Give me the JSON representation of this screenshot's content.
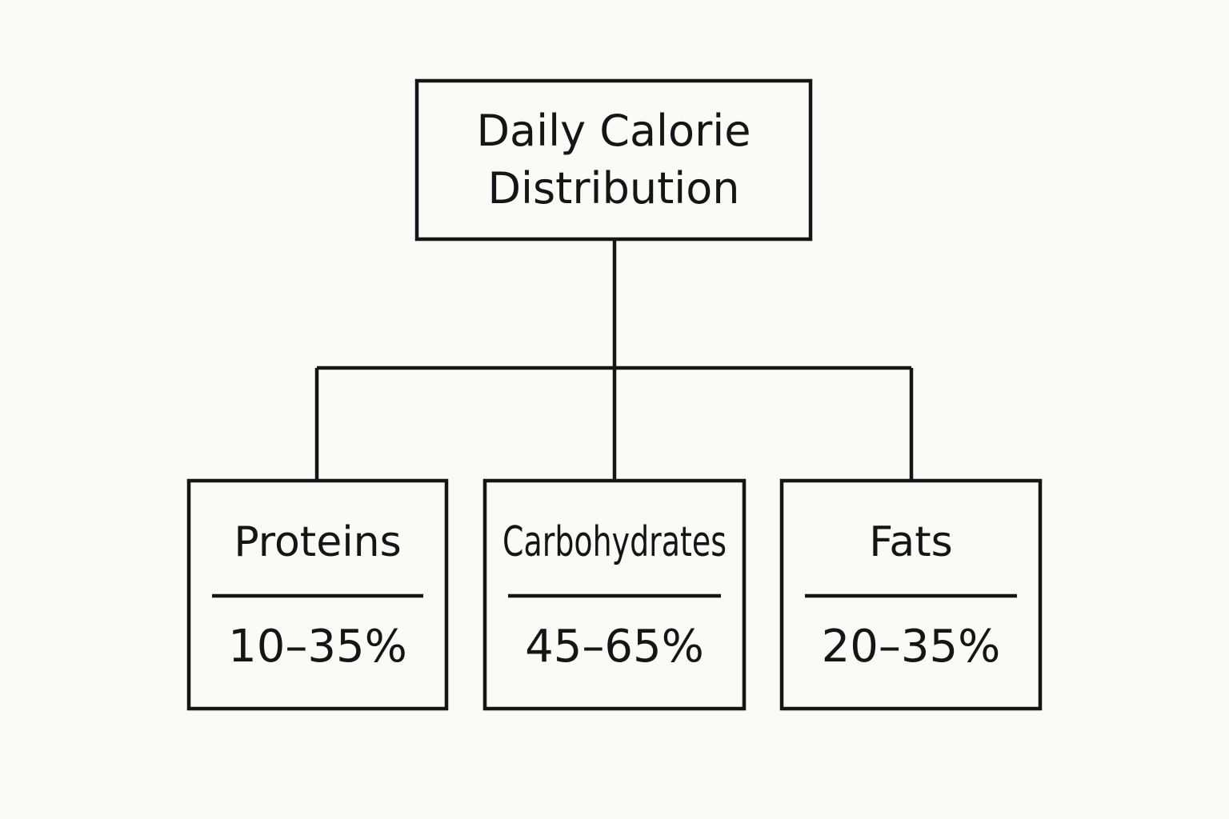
{
  "root": {
    "title": "Daily Calorie Distribution"
  },
  "nodes": [
    {
      "label": "Proteins",
      "range": "10–35%"
    },
    {
      "label": "Carbohydrates",
      "range": "45–65%"
    },
    {
      "label": "Fats",
      "range": "20–35%"
    }
  ]
}
